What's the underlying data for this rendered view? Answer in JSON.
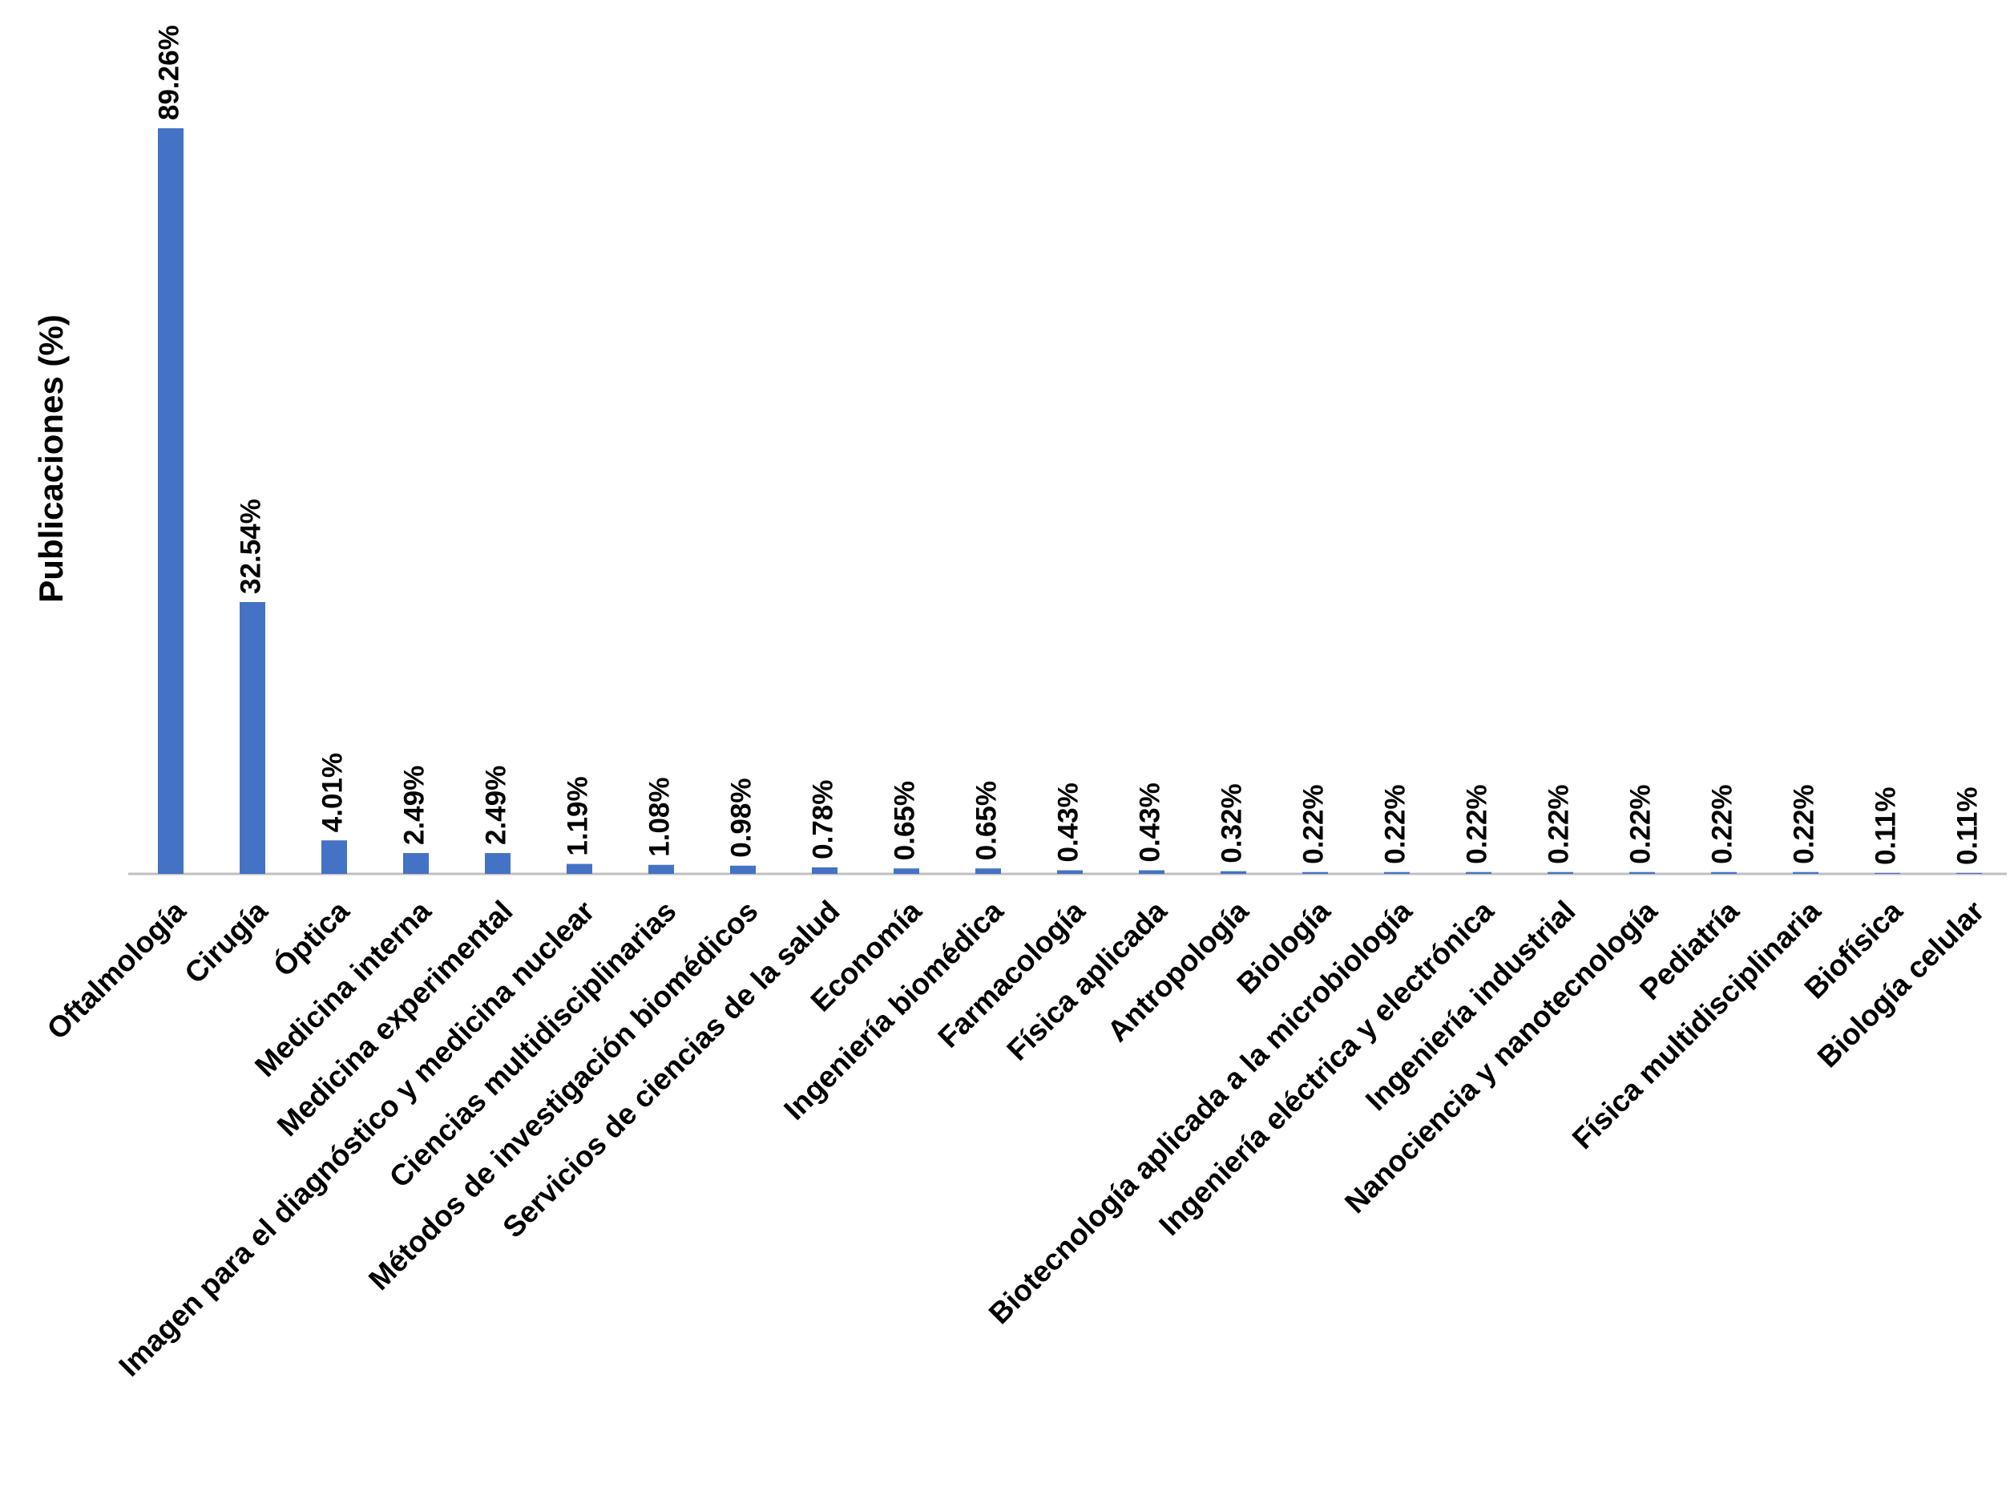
{
  "chart_data": {
    "type": "bar",
    "y_label": "Publicaciones (%)",
    "categories": [
      "Oftalmología",
      "Cirugía",
      "Óptica",
      "Medicina interna",
      "Medicina experimental",
      "Imagen para el diagnóstico y medicina nuclear",
      "Ciencias multidisciplinarias",
      "Métodos de investigación biomédicos",
      "Servicios de ciencias de la salud",
      "Economía",
      "Ingeniería biomédica",
      "Farmacología",
      "Física aplicada",
      "Antropología",
      "Biología",
      "Biotecnología aplicada a la microbiología",
      "Ingeniería eléctrica y electrónica",
      "Ingeniería industrial",
      "Nanociencia y nanotecnología",
      "Pediatría",
      "Física multidisciplinaria",
      "Biofísica",
      "Biología celular"
    ],
    "values": [
      89.26,
      32.54,
      4.01,
      2.49,
      2.49,
      1.19,
      1.08,
      0.98,
      0.78,
      0.65,
      0.65,
      0.43,
      0.43,
      0.32,
      0.22,
      0.22,
      0.22,
      0.22,
      0.22,
      0.22,
      0.22,
      0.11,
      0.11
    ],
    "value_labels": [
      "89.26%",
      "32.54%",
      "4.01%",
      "2.49%",
      "2.49%",
      "1.19%",
      "1.08%",
      "0.98%",
      "0.78%",
      "0.65%",
      "0.65%",
      "0.43%",
      "0.43%",
      "0.32%",
      "0.22%",
      "0.22%",
      "0.22%",
      "0.22%",
      "0.22%",
      "0.22%",
      "0.22%",
      "0.11%",
      "0.11%"
    ],
    "color": "#4472c4"
  }
}
